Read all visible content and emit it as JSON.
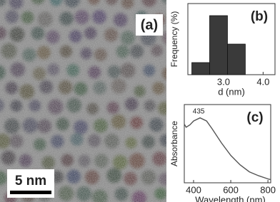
{
  "panel_a": {
    "label": "(a)",
    "scale_bar": "5 nm"
  },
  "chart_data": [
    {
      "type": "histogram",
      "label": "(b)",
      "xlabel": "d (nm)",
      "ylabel": "Frequency (%)",
      "bins": [
        2.2,
        2.65,
        3.1,
        3.55
      ],
      "values": [
        17,
        83,
        43
      ],
      "color": "#3a3a3a",
      "xlim": [
        2.1,
        4.3
      ],
      "xticks": [
        {
          "value": 3,
          "label": "3.0"
        },
        {
          "value": 4,
          "label": "4.0"
        }
      ],
      "ylim": [
        0,
        100
      ]
    },
    {
      "type": "line",
      "label": "(c)",
      "xlabel": "Wavelength (nm)",
      "ylabel": "Absorbance",
      "annotation": "435",
      "x": [
        350,
        360,
        380,
        400,
        435,
        470,
        500,
        550,
        600,
        650,
        700,
        750,
        800,
        815
      ],
      "values": [
        0.75,
        0.71,
        0.74,
        0.79,
        0.83,
        0.79,
        0.69,
        0.51,
        0.35,
        0.23,
        0.14,
        0.09,
        0.05,
        0.04
      ],
      "color": "#555555",
      "xlim": [
        350,
        815
      ],
      "xticks": [
        400,
        600,
        800
      ],
      "ylim": [
        0,
        1
      ]
    }
  ]
}
